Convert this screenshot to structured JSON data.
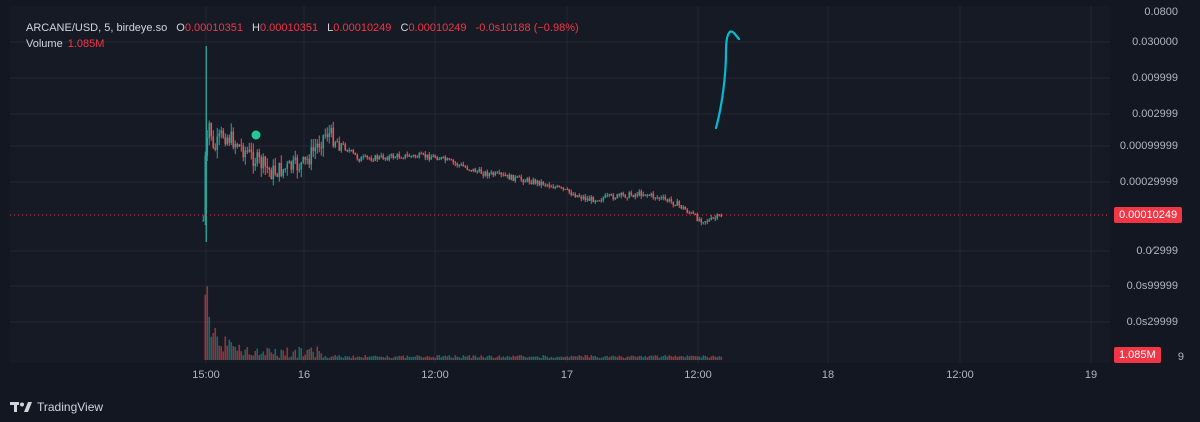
{
  "legend": {
    "symbol": "ARCANE/USD, 5, birdeye.so",
    "open_label": "O",
    "open": "0.00010351",
    "high_label": "H",
    "high": "0.00010351",
    "low_label": "L",
    "low": "0.00010249",
    "close_label": "C",
    "close": "0.00010249",
    "change": "-0.0s10188 (−0.98%)",
    "volume_label": "Volume",
    "volume": "1.085M"
  },
  "price_axis": {
    "ticks": [
      "0.0800",
      "0.030000",
      "0.009999",
      "0.002999",
      "0.00099999",
      "0.00029999",
      "0.0⁄2999",
      "0.0s99999",
      "0.0s29999",
      "9"
    ],
    "current_price_tag": "0.00010249",
    "volume_tag": "1.085M"
  },
  "time_axis": {
    "ticks": [
      "15:00",
      "16",
      "12:00",
      "17",
      "12:00",
      "18",
      "12:00",
      "19"
    ]
  },
  "brand": {
    "name": "TradingView",
    "icon": "tradingview-logo-icon"
  },
  "colors": {
    "up": "#26a69a",
    "down": "#ef5350",
    "accent": "#f23645",
    "drawing": "#00bcd4",
    "marker": "#22c997",
    "background": "#161a25"
  },
  "chart_data": {
    "type": "candlestick",
    "price_scale": "log",
    "x_range": [
      "15 14:00",
      "19 04:00"
    ],
    "price_series": [
      {
        "t": "15 14:45",
        "price": 8.5e-05
      },
      {
        "t": "15 15:00",
        "price": 0.0013
      },
      {
        "t": "15 15:10",
        "price": 0.0009
      },
      {
        "t": "15 15:20",
        "price": 0.0025
      },
      {
        "t": "15 15:40",
        "price": 0.0008
      },
      {
        "t": "15 16:30",
        "price": 0.0015
      },
      {
        "t": "15 17:30",
        "price": 0.0012
      },
      {
        "t": "15 19:00",
        "price": 0.00075
      },
      {
        "t": "15 21:00",
        "price": 0.00042
      },
      {
        "t": "16 00:00",
        "price": 0.00055
      },
      {
        "t": "16 02:00",
        "price": 0.0016
      },
      {
        "t": "16 05:00",
        "price": 0.00065
      },
      {
        "t": "16 09:00",
        "price": 0.00072
      },
      {
        "t": "16 12:00",
        "price": 0.0007
      },
      {
        "t": "16 16:00",
        "price": 0.00042
      },
      {
        "t": "16 22:00",
        "price": 0.00029
      },
      {
        "t": "17 02:00",
        "price": 0.00017
      },
      {
        "t": "17 07:00",
        "price": 0.00021
      },
      {
        "t": "17 10:00",
        "price": 0.00015
      },
      {
        "t": "17 12:00",
        "price": 9e-05
      },
      {
        "t": "17 13:00",
        "price": 8.5e-05
      },
      {
        "t": "17 14:15",
        "price": 0.00010249
      }
    ],
    "volume_peak": "1.085M"
  }
}
